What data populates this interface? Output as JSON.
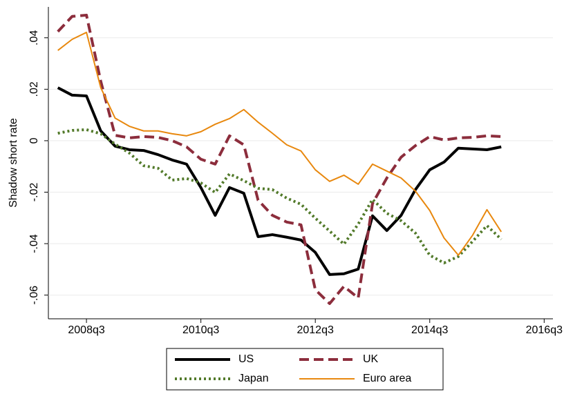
{
  "chart_data": {
    "type": "line",
    "ylabel": "Shadow short rate",
    "x": [
      "2008q1",
      "2008q2",
      "2008q3",
      "2008q4",
      "2009q1",
      "2009q2",
      "2009q3",
      "2009q4",
      "2010q1",
      "2010q2",
      "2010q3",
      "2010q4",
      "2011q1",
      "2011q2",
      "2011q3",
      "2011q4",
      "2012q1",
      "2012q2",
      "2012q3",
      "2012q4",
      "2013q1",
      "2013q2",
      "2013q3",
      "2013q4",
      "2014q1",
      "2014q2",
      "2014q3",
      "2014q4",
      "2015q1",
      "2015q2",
      "2015q3",
      "2015q4"
    ],
    "xlim": [
      "2007q4",
      "2016q4"
    ],
    "xticks": [
      "2008q3",
      "2010q3",
      "2012q3",
      "2014q3",
      "2016q3"
    ],
    "ylim": [
      -0.0692,
      0.052
    ],
    "yticks": [
      {
        "value": -0.06,
        "label": "-.06"
      },
      {
        "value": -0.04,
        "label": "-.04"
      },
      {
        "value": -0.02,
        "label": "-.02"
      },
      0,
      {
        "value": 0.02,
        "label": ".02"
      },
      {
        "value": 0.04,
        "label": ".04"
      }
    ],
    "grid": true,
    "legend": "bottom",
    "series": [
      {
        "name": "US",
        "color": "#000000",
        "dash": "solid",
        "linewidth": 4,
        "values": [
          0.0206,
          0.0177,
          0.0174,
          0.0038,
          -0.0021,
          -0.0035,
          -0.0038,
          -0.0054,
          -0.0075,
          -0.0091,
          -0.0182,
          -0.029,
          -0.0182,
          -0.0204,
          -0.0373,
          -0.0365,
          -0.0375,
          -0.0386,
          -0.0434,
          -0.052,
          -0.0517,
          -0.0499,
          -0.0292,
          -0.0349,
          -0.029,
          -0.019,
          -0.0113,
          -0.0083,
          -0.0029,
          -0.0032,
          -0.0035,
          -0.0024
        ]
      },
      {
        "name": "UK",
        "color": "#8c2d3c",
        "dash": "dash",
        "linewidth": 4,
        "values": [
          0.0424,
          0.0483,
          0.0488,
          0.0231,
          0.0021,
          0.0011,
          0.0016,
          0.0013,
          0,
          -0.0024,
          -0.0072,
          -0.0091,
          0.0019,
          -0.0016,
          -0.0231,
          -0.029,
          -0.0316,
          -0.0327,
          -0.0579,
          -0.0633,
          -0.0566,
          -0.0611,
          -0.0244,
          -0.0145,
          -0.0064,
          -0.0019,
          0.0016,
          0.0003,
          0.0011,
          0.0013,
          0.0019,
          0.0016
        ]
      },
      {
        "name": "Japan",
        "color": "#527a2a",
        "dash": "dot",
        "linewidth": 4,
        "values": [
          0.0029,
          0.004,
          0.0043,
          0.0027,
          -0.0013,
          -0.0048,
          -0.0097,
          -0.0107,
          -0.0153,
          -0.0147,
          -0.0164,
          -0.0201,
          -0.0129,
          -0.0155,
          -0.0185,
          -0.019,
          -0.0223,
          -0.0247,
          -0.0301,
          -0.0351,
          -0.0402,
          -0.0324,
          -0.0228,
          -0.0282,
          -0.0311,
          -0.0359,
          -0.0445,
          -0.0475,
          -0.045,
          -0.0391,
          -0.033,
          -0.0383
        ]
      },
      {
        "name": "Euro area",
        "color": "#e8880e",
        "dash": "solid",
        "linewidth": 2,
        "values": [
          0.0351,
          0.0394,
          0.0421,
          0.0206,
          0.0088,
          0.0056,
          0.0038,
          0.0038,
          0.0027,
          0.0019,
          0.0035,
          0.0064,
          0.0086,
          0.0121,
          0.0072,
          0.0029,
          -0.0016,
          -0.004,
          -0.0113,
          -0.0158,
          -0.0134,
          -0.0169,
          -0.0091,
          -0.0118,
          -0.0145,
          -0.0196,
          -0.0271,
          -0.0378,
          -0.0445,
          -0.0367,
          -0.0268,
          -0.0354
        ]
      }
    ]
  }
}
